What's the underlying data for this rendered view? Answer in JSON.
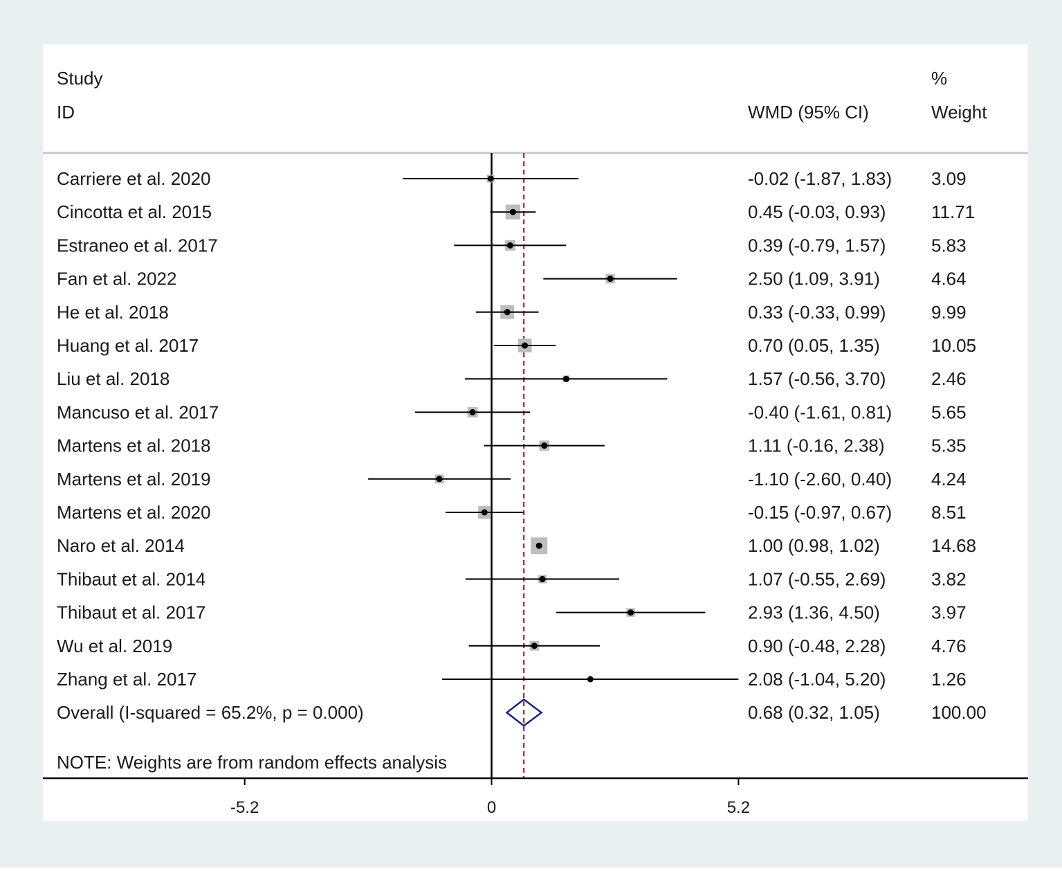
{
  "chart_data": {
    "type": "forest",
    "header": {
      "study_line1": "Study",
      "study_line2": "ID",
      "effect": "WMD (95% CI)",
      "weight_line1": "%",
      "weight_line2": "Weight"
    },
    "studies": [
      {
        "label": "Carriere et al. 2020",
        "est": -0.02,
        "lo": -1.87,
        "hi": 1.83,
        "text": "-0.02 (-1.87, 1.83)",
        "weight": 3.09,
        "weight_text": "3.09"
      },
      {
        "label": "Cincotta et al. 2015",
        "est": 0.45,
        "lo": -0.03,
        "hi": 0.93,
        "text": "0.45 (-0.03, 0.93)",
        "weight": 11.71,
        "weight_text": "11.71"
      },
      {
        "label": "Estraneo et al. 2017",
        "est": 0.39,
        "lo": -0.79,
        "hi": 1.57,
        "text": "0.39 (-0.79, 1.57)",
        "weight": 5.83,
        "weight_text": "5.83"
      },
      {
        "label": "Fan et al. 2022",
        "est": 2.5,
        "lo": 1.09,
        "hi": 3.91,
        "text": "2.50 (1.09, 3.91)",
        "weight": 4.64,
        "weight_text": "4.64"
      },
      {
        "label": "He et al. 2018",
        "est": 0.33,
        "lo": -0.33,
        "hi": 0.99,
        "text": "0.33 (-0.33, 0.99)",
        "weight": 9.99,
        "weight_text": "9.99"
      },
      {
        "label": "Huang et al. 2017",
        "est": 0.7,
        "lo": 0.05,
        "hi": 1.35,
        "text": "0.70 (0.05, 1.35)",
        "weight": 10.05,
        "weight_text": "10.05"
      },
      {
        "label": "Liu et al. 2018",
        "est": 1.57,
        "lo": -0.56,
        "hi": 3.7,
        "text": "1.57 (-0.56, 3.70)",
        "weight": 2.46,
        "weight_text": "2.46"
      },
      {
        "label": "Mancuso et al. 2017",
        "est": -0.4,
        "lo": -1.61,
        "hi": 0.81,
        "text": "-0.40 (-1.61, 0.81)",
        "weight": 5.65,
        "weight_text": "5.65"
      },
      {
        "label": "Martens et al. 2018",
        "est": 1.11,
        "lo": -0.16,
        "hi": 2.38,
        "text": "1.11 (-0.16, 2.38)",
        "weight": 5.35,
        "weight_text": "5.35"
      },
      {
        "label": "Martens et al. 2019",
        "est": -1.1,
        "lo": -2.6,
        "hi": 0.4,
        "text": "-1.10 (-2.60, 0.40)",
        "weight": 4.24,
        "weight_text": "4.24"
      },
      {
        "label": "Martens et al. 2020",
        "est": -0.15,
        "lo": -0.97,
        "hi": 0.67,
        "text": "-0.15 (-0.97, 0.67)",
        "weight": 8.51,
        "weight_text": "8.51"
      },
      {
        "label": "Naro et al. 2014",
        "est": 1.0,
        "lo": 0.98,
        "hi": 1.02,
        "text": "1.00 (0.98, 1.02)",
        "weight": 14.68,
        "weight_text": "14.68"
      },
      {
        "label": "Thibaut et al. 2014",
        "est": 1.07,
        "lo": -0.55,
        "hi": 2.69,
        "text": "1.07 (-0.55, 2.69)",
        "weight": 3.82,
        "weight_text": "3.82"
      },
      {
        "label": "Thibaut et al. 2017",
        "est": 2.93,
        "lo": 1.36,
        "hi": 4.5,
        "text": "2.93 (1.36, 4.50)",
        "weight": 3.97,
        "weight_text": "3.97"
      },
      {
        "label": "Wu et al. 2019",
        "est": 0.9,
        "lo": -0.48,
        "hi": 2.28,
        "text": "0.90 (-0.48, 2.28)",
        "weight": 4.76,
        "weight_text": "4.76"
      },
      {
        "label": "Zhang et al. 2017",
        "est": 2.08,
        "lo": -1.04,
        "hi": 5.2,
        "text": "2.08 (-1.04, 5.20)",
        "weight": 1.26,
        "weight_text": "1.26"
      }
    ],
    "overall": {
      "label": "Overall  (I-squared = 65.2%, p = 0.000)",
      "est": 0.68,
      "lo": 0.32,
      "hi": 1.05,
      "text": "0.68 (0.32, 1.05)",
      "weight_text": "100.00"
    },
    "note": "NOTE: Weights are from random effects analysis",
    "x_ticks": [
      -5.2,
      0,
      5.2
    ],
    "x_tick_labels": [
      "-5.2",
      "0",
      "5.2"
    ],
    "xlim": [
      -9.45,
      11.3
    ],
    "null_line": 0,
    "colors": {
      "outer_background": "#e9f0f2",
      "plot_background": "#ffffff",
      "line": "#000000",
      "weight_box": "#bdbdbd",
      "overall_diamond": "#1a237e",
      "overall_line": "#8b1a1a",
      "header_rule": "#c8c8c8"
    }
  }
}
